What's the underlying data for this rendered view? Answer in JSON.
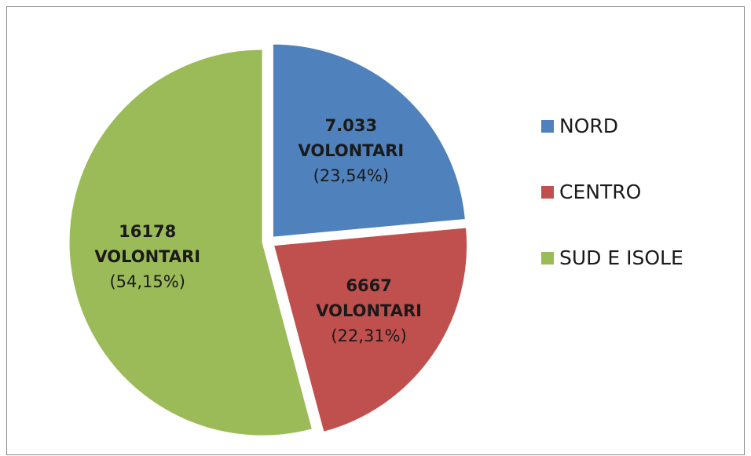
{
  "chart_data": {
    "type": "pie",
    "categories": [
      "NORD",
      "CENTRO",
      "SUD E ISOLE"
    ],
    "values": [
      7033,
      6667,
      16178
    ],
    "value_labels": [
      "7.033",
      "6667",
      "16178"
    ],
    "unit_label": "VOLONTARI",
    "percentages": [
      23.54,
      22.31,
      54.15
    ],
    "percentage_labels": [
      "(23,54%)",
      "(22,31%)",
      "(54,15%)"
    ],
    "colors": [
      "#4f81bd",
      "#c0504d",
      "#9bbb59"
    ],
    "legend": "right"
  }
}
